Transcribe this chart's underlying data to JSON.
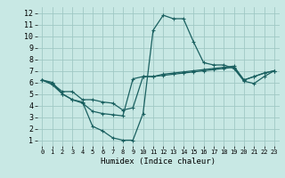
{
  "xlabel": "Humidex (Indice chaleur)",
  "bg_color": "#c8e8e4",
  "grid_color": "#a0c8c4",
  "line_color": "#1a6060",
  "xlim": [
    -0.5,
    23.5
  ],
  "ylim": [
    0.5,
    12.5
  ],
  "xticks": [
    0,
    1,
    2,
    3,
    4,
    5,
    6,
    7,
    8,
    9,
    10,
    11,
    12,
    13,
    14,
    15,
    16,
    17,
    18,
    19,
    20,
    21,
    22,
    23
  ],
  "yticks": [
    1,
    2,
    3,
    4,
    5,
    6,
    7,
    8,
    9,
    10,
    11,
    12
  ],
  "line1_x": [
    0,
    1,
    2,
    3,
    4,
    5,
    6,
    7,
    8,
    9,
    10,
    11,
    12,
    13,
    14,
    15,
    16,
    17,
    18,
    19,
    20,
    21,
    22,
    23
  ],
  "line1_y": [
    6.2,
    5.9,
    5.2,
    5.2,
    4.5,
    4.5,
    4.3,
    4.2,
    3.6,
    3.8,
    6.5,
    6.5,
    6.6,
    6.7,
    6.8,
    6.9,
    7.0,
    7.1,
    7.2,
    7.3,
    6.2,
    6.5,
    6.8,
    7.0
  ],
  "line2_x": [
    0,
    1,
    2,
    3,
    4,
    5,
    6,
    7,
    8,
    9,
    10,
    11,
    12,
    13,
    14,
    15,
    16,
    17,
    18,
    19,
    20,
    21,
    22,
    23
  ],
  "line2_y": [
    6.2,
    6.0,
    5.0,
    4.5,
    4.3,
    2.2,
    1.8,
    1.2,
    1.0,
    1.0,
    3.3,
    10.5,
    11.8,
    11.5,
    11.5,
    9.5,
    7.7,
    7.5,
    7.5,
    7.2,
    6.1,
    5.9,
    6.5,
    7.0
  ],
  "line3_x": [
    0,
    1,
    2,
    3,
    4,
    5,
    6,
    7,
    8,
    9,
    10,
    11,
    12,
    13,
    14,
    15,
    16,
    17,
    18,
    19,
    20,
    21,
    22,
    23
  ],
  "line3_y": [
    6.2,
    5.8,
    5.0,
    4.5,
    4.2,
    3.5,
    3.3,
    3.2,
    3.1,
    6.3,
    6.5,
    6.5,
    6.7,
    6.8,
    6.9,
    7.0,
    7.1,
    7.2,
    7.3,
    7.4,
    6.2,
    6.5,
    6.8,
    7.0
  ]
}
